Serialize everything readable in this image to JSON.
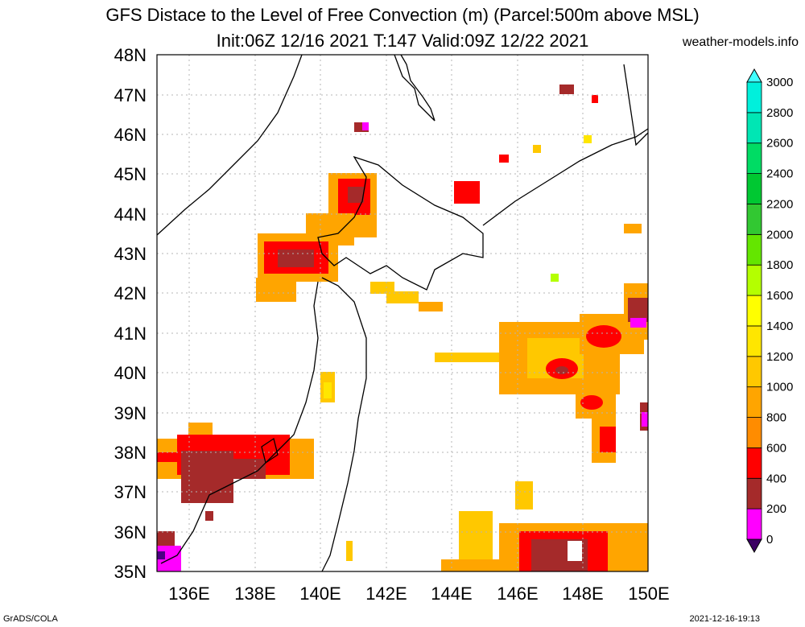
{
  "header": {
    "title_line1": "GFS Distace to the Level of Free Convection (m) (Parcel:500m above MSL)",
    "title_line2": "Init:06Z 12/16 2021 T:147 Valid:09Z 12/22 2021",
    "site": "weather-models.info"
  },
  "footer": {
    "left": "GrADS/COLA",
    "right": "2021-12-16-19:13"
  },
  "map": {
    "lat_labels": [
      "48N",
      "47N",
      "46N",
      "45N",
      "44N",
      "43N",
      "42N",
      "41N",
      "40N",
      "39N",
      "38N",
      "37N",
      "36N",
      "35N"
    ],
    "lon_labels": [
      "136E",
      "138E",
      "140E",
      "142E",
      "144E",
      "146E",
      "148E",
      "150E"
    ],
    "lon_range": [
      135,
      150
    ],
    "lat_range": [
      35,
      48
    ]
  },
  "colorbar": {
    "levels": [
      "0",
      "200",
      "400",
      "600",
      "800",
      "1000",
      "1200",
      "1400",
      "1600",
      "1800",
      "2000",
      "2200",
      "2400",
      "2600",
      "2800",
      "3000"
    ],
    "colors": [
      "#4b0082",
      "#ff00ff",
      "#a52a2a",
      "#ff0000",
      "#ff8c00",
      "#ffa500",
      "#ffc800",
      "#ffe600",
      "#ffff00",
      "#b4ff00",
      "#64e600",
      "#32c832",
      "#00c832",
      "#00dc64",
      "#00e6b4",
      "#00f0dc",
      "#40ffff"
    ],
    "under_color": "#3c0064",
    "over_color": "#40ffff"
  }
}
